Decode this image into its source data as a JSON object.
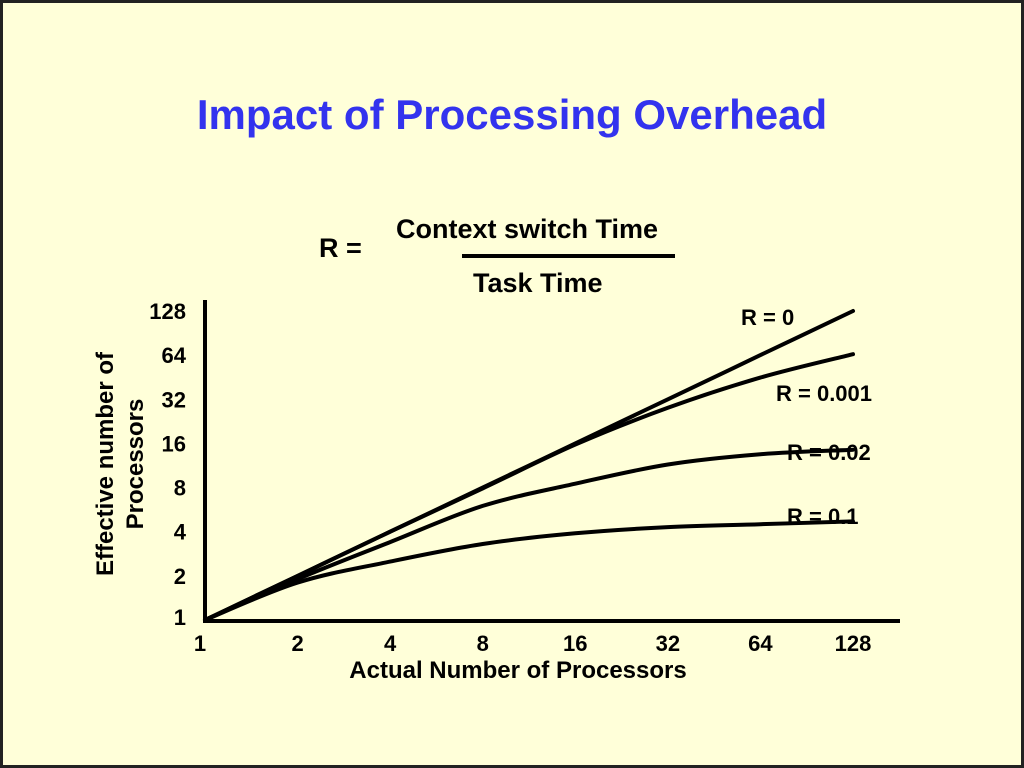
{
  "chart_data": {
    "type": "line",
    "title": "Impact of Processing Overhead",
    "formula": {
      "lhs": "R =",
      "numerator": "Context switch Time",
      "denominator": "Task Time"
    },
    "xlabel": "Actual Number of Processors",
    "ylabel": [
      "Effective number of",
      "Processors"
    ],
    "x_scale": "log2",
    "y_scale": "log2",
    "x_ticks": [
      1,
      2,
      4,
      8,
      16,
      32,
      64,
      128
    ],
    "y_ticks": [
      1,
      2,
      4,
      8,
      16,
      32,
      64,
      128
    ],
    "xlim": [
      1,
      128
    ],
    "ylim": [
      1,
      128
    ],
    "grid": false,
    "x": [
      1,
      2,
      4,
      8,
      16,
      32,
      64,
      128
    ],
    "series": [
      {
        "name": "R = 0",
        "values": [
          1,
          2,
          4,
          8,
          16,
          32,
          64,
          128
        ]
      },
      {
        "name": "R = 0.001",
        "values": [
          1,
          2,
          4,
          7.9,
          15.7,
          28,
          45,
          65
        ]
      },
      {
        "name": "R = 0.02",
        "values": [
          1,
          1.9,
          3.4,
          6,
          8.5,
          11.5,
          13.5,
          14.5
        ]
      },
      {
        "name": "R = 0.1",
        "values": [
          1,
          1.8,
          2.5,
          3.3,
          3.9,
          4.3,
          4.5,
          4.7
        ]
      }
    ]
  }
}
